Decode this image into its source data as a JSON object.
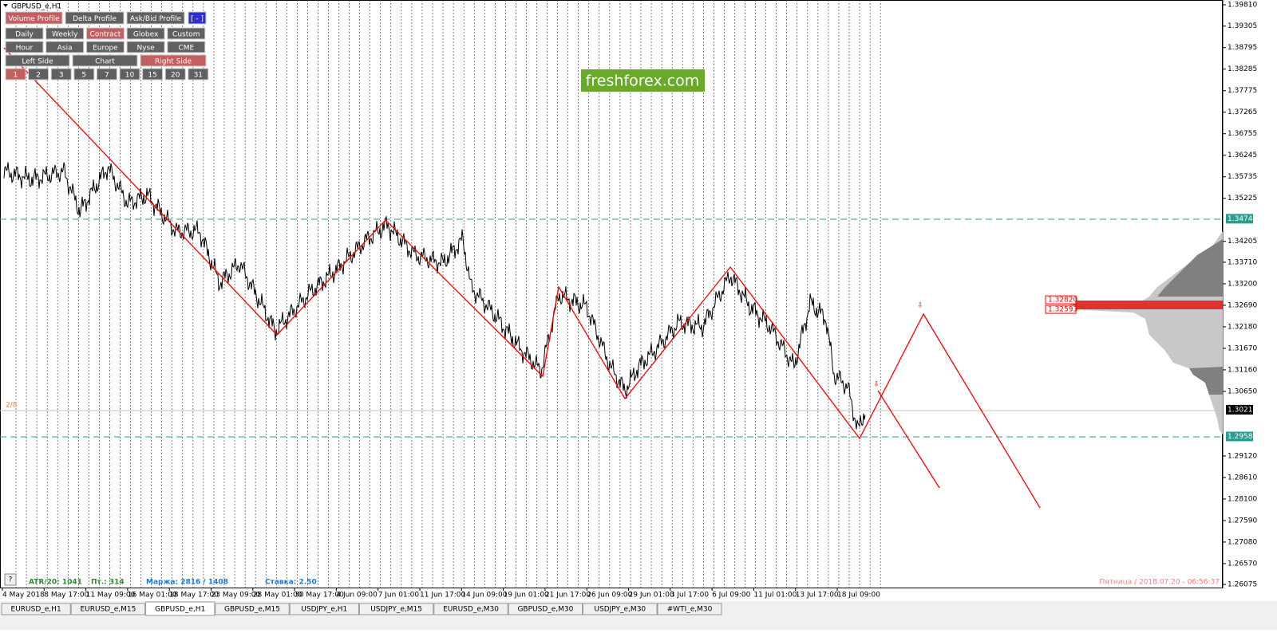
{
  "window_title": "GBPUSD_e,H1",
  "toolbar": {
    "row1": [
      "Volume Profile",
      "Delta Profile",
      "Ask/Bid Profile",
      "[ - ]"
    ],
    "row2": [
      "Daily",
      "Weekly",
      "Contract",
      "Globex",
      "Custom"
    ],
    "row3": [
      "Hour",
      "Asia",
      "Europe",
      "Nyse",
      "CME"
    ],
    "row4": [
      "Left Side",
      "Chart",
      "Right Side"
    ],
    "row5": [
      "1",
      "2",
      "3",
      "5",
      "7",
      "10",
      "15",
      "20",
      "31"
    ]
  },
  "logo": "freshforex.com",
  "price_axis": {
    "ticks": [
      "1.39810",
      "1.39305",
      "1.38795",
      "1.38285",
      "1.37775",
      "1.37265",
      "1.36755",
      "1.36245",
      "1.35735",
      "1.35225",
      "1.34205",
      "1.33710",
      "1.33200",
      "1.32690",
      "1.32180",
      "1.31670",
      "1.31160",
      "1.30650",
      "1.29120",
      "1.28610",
      "1.28100",
      "1.27590",
      "1.27080",
      "1.26570",
      "1.26075"
    ],
    "current": "1.30216",
    "levels": [
      "1.34741",
      "1.29582"
    ]
  },
  "profile_labels": [
    "1.32820",
    "1.32593"
  ],
  "time_axis": [
    "4 May 2018",
    "8 May 17:00",
    "11 May 09:00",
    "16 May 01:00",
    "18 May 17:00",
    "23 May 09:00",
    "28 May 01:00",
    "30 May 17:00",
    "4 Jun 09:00",
    "7 Jun 01:00",
    "11 Jun 17:00",
    "14 Jun 09:00",
    "19 Jun 01:00",
    "21 Jun 17:00",
    "26 Jun 09:00",
    "29 Jun 01:00",
    "3 Jul 17:00",
    "6 Jul 09:00",
    "11 Jul 01:00",
    "13 Jul 17:00",
    "18 Jul 09:00"
  ],
  "status": {
    "atr": "ATR/20: 1041",
    "pt": "Пт.: 314",
    "margin": "Маржа: 2816 / 1408",
    "rate": "Ставка: 2.50",
    "datetime": "Пятница / 2018.07.20 - 06:56:37"
  },
  "level_label": "2/8",
  "help": "?",
  "tabs": [
    "EURUSD_e,H1",
    "EURUSD_e,M15",
    "GBPUSD_e,H1",
    "GBPUSD_e,M15",
    "USDJPY_e,H1",
    "USDJPY_e,M15",
    "EURUSD_e,M30",
    "GBPUSD_e,M30",
    "USDJPY_e,M30",
    "#WTI_e,M30"
  ]
}
